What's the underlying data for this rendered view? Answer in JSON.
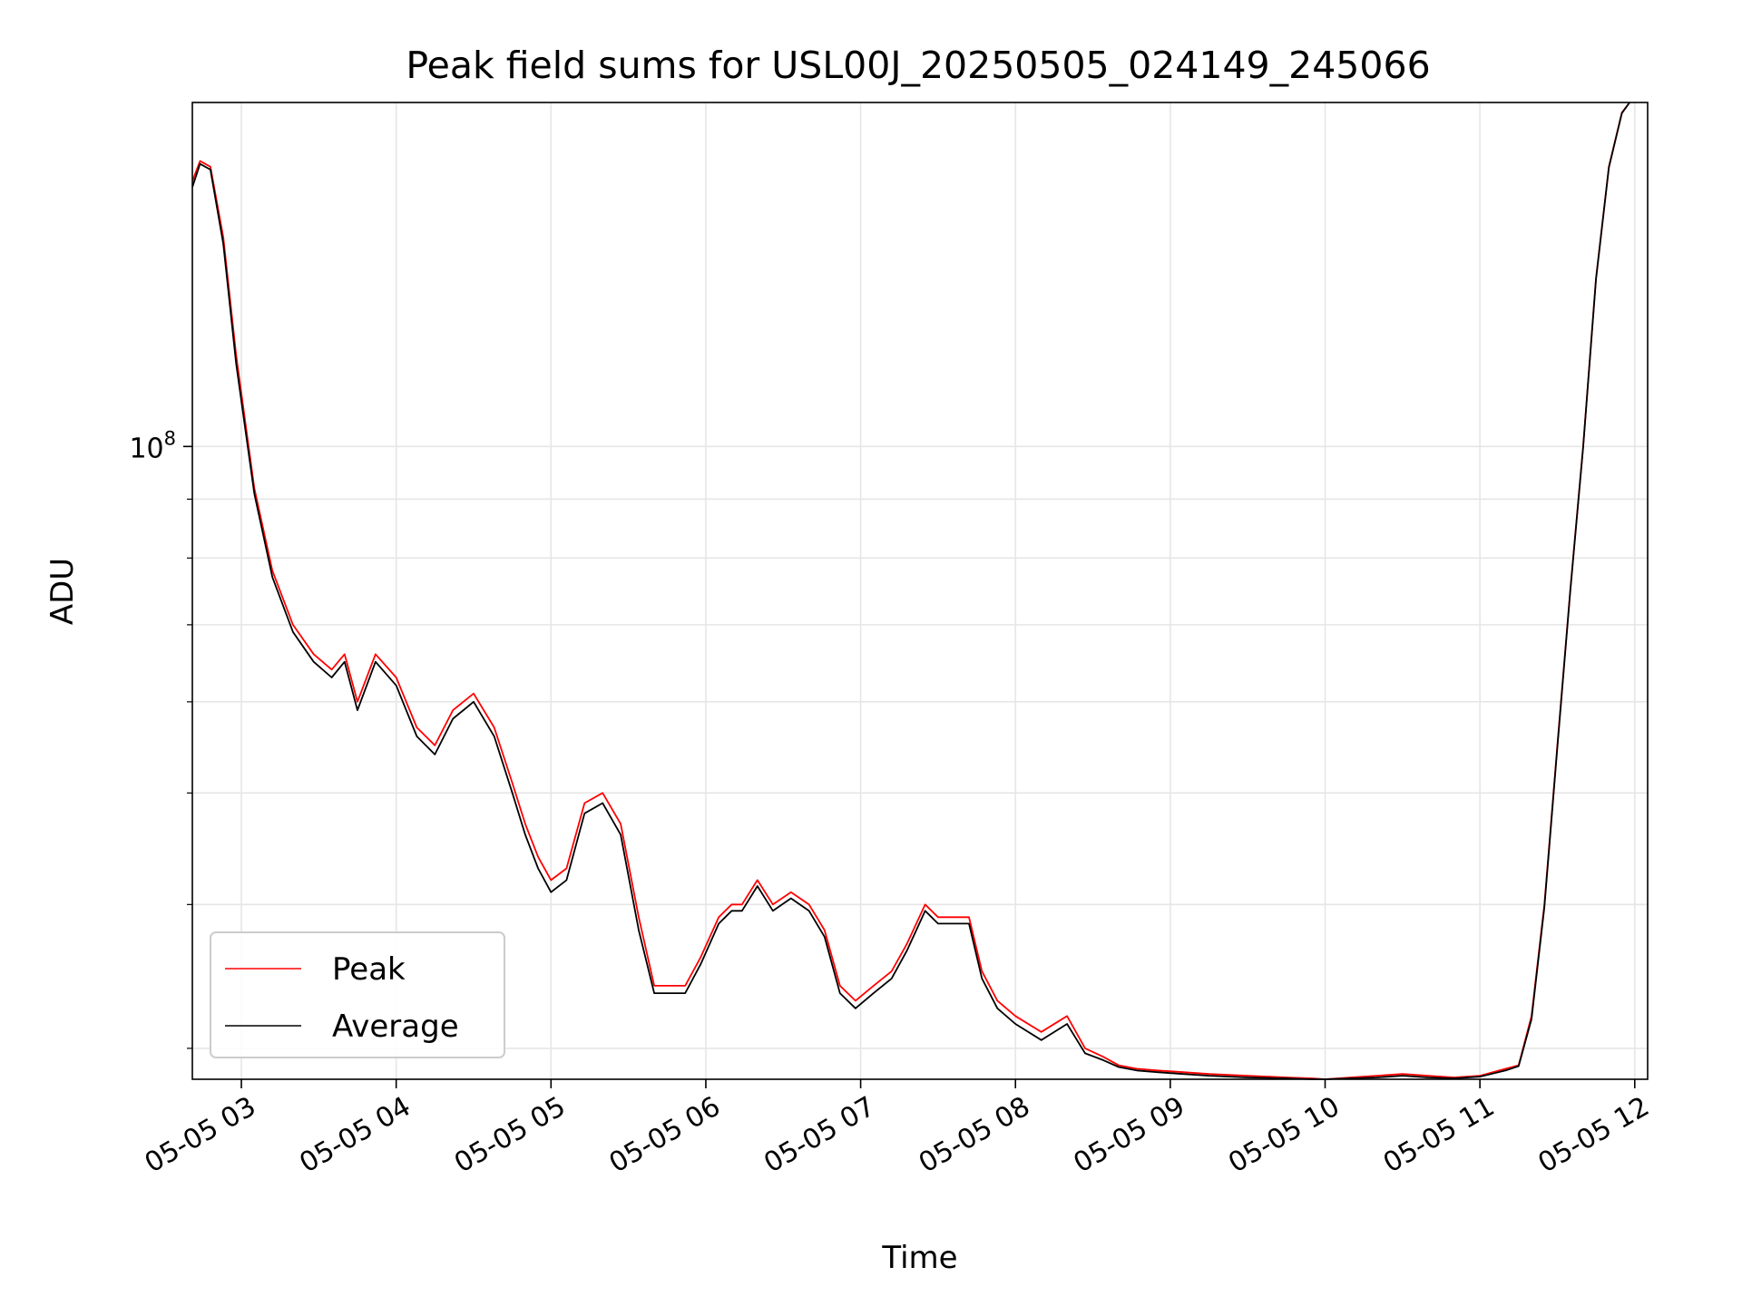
{
  "chart_data": {
    "type": "line",
    "title": "Peak field sums for USL00J_20250505_024149_245066",
    "xlabel": "Time",
    "ylabel": "ADU",
    "x_tick_labels": [
      "05-05 03",
      "05-05 04",
      "05-05 05",
      "05-05 06",
      "05-05 07",
      "05-05 08",
      "05-05 09",
      "05-05 10",
      "05-05 11",
      "05-05 12"
    ],
    "x_tick_values": [
      "2025-05-05 03:00",
      "2025-05-05 04:00",
      "2025-05-05 05:00",
      "2025-05-05 06:00",
      "2025-05-05 07:00",
      "2025-05-05 08:00",
      "2025-05-05 09:00",
      "2025-05-05 10:00",
      "2025-05-05 11:00",
      "2025-05-05 12:00"
    ],
    "xlim": [
      "2025-05-05 02:41",
      "2025-05-05 12:05"
    ],
    "y_scale": "log",
    "y_tick_labels": [
      {
        "base": "10",
        "exp": "8",
        "value": 100000000
      }
    ],
    "ylim": [
      28200000,
      199000000
    ],
    "grid": true,
    "legend_position": "lower-left",
    "series": [
      {
        "name": "Peak",
        "color": "#ff0000",
        "x": [
          "2025-05-05 02:41",
          "2025-05-05 02:44",
          "2025-05-05 02:48",
          "2025-05-05 02:53",
          "2025-05-05 02:58",
          "2025-05-05 03:05",
          "2025-05-05 03:12",
          "2025-05-05 03:20",
          "2025-05-05 03:28",
          "2025-05-05 03:35",
          "2025-05-05 03:40",
          "2025-05-05 03:45",
          "2025-05-05 03:52",
          "2025-05-05 04:00",
          "2025-05-05 04:08",
          "2025-05-05 04:15",
          "2025-05-05 04:22",
          "2025-05-05 04:30",
          "2025-05-05 04:38",
          "2025-05-05 04:45",
          "2025-05-05 04:50",
          "2025-05-05 04:55",
          "2025-05-05 05:00",
          "2025-05-05 05:06",
          "2025-05-05 05:13",
          "2025-05-05 05:20",
          "2025-05-05 05:27",
          "2025-05-05 05:34",
          "2025-05-05 05:40",
          "2025-05-05 05:46",
          "2025-05-05 05:52",
          "2025-05-05 05:58",
          "2025-05-05 06:05",
          "2025-05-05 06:10",
          "2025-05-05 06:14",
          "2025-05-05 06:20",
          "2025-05-05 06:26",
          "2025-05-05 06:33",
          "2025-05-05 06:40",
          "2025-05-05 06:46",
          "2025-05-05 06:52",
          "2025-05-05 06:58",
          "2025-05-05 07:05",
          "2025-05-05 07:12",
          "2025-05-05 07:18",
          "2025-05-05 07:25",
          "2025-05-05 07:30",
          "2025-05-05 07:36",
          "2025-05-05 07:42",
          "2025-05-05 07:47",
          "2025-05-05 07:53",
          "2025-05-05 08:00",
          "2025-05-05 08:10",
          "2025-05-05 08:20",
          "2025-05-05 08:27",
          "2025-05-05 08:34",
          "2025-05-05 08:40",
          "2025-05-05 08:47",
          "2025-05-05 08:55",
          "2025-05-05 09:05",
          "2025-05-05 09:15",
          "2025-05-05 09:30",
          "2025-05-05 09:45",
          "2025-05-05 09:55",
          "2025-05-05 10:00",
          "2025-05-05 10:10",
          "2025-05-05 10:20",
          "2025-05-05 10:30",
          "2025-05-05 10:40",
          "2025-05-05 10:50",
          "2025-05-05 11:00",
          "2025-05-05 11:10",
          "2025-05-05 11:15",
          "2025-05-05 11:20",
          "2025-05-05 11:25",
          "2025-05-05 11:30",
          "2025-05-05 11:35",
          "2025-05-05 11:40",
          "2025-05-05 11:45",
          "2025-05-05 11:50",
          "2025-05-05 11:55",
          "2025-05-05 11:58"
        ],
        "y": [
          170000000,
          177000000,
          175000000,
          152000000,
          120000000,
          92000000,
          78000000,
          70000000,
          66000000,
          64000000,
          66000000,
          60000000,
          66000000,
          63000000,
          57000000,
          55000000,
          59000000,
          61000000,
          57000000,
          51000000,
          47000000,
          44000000,
          42000000,
          43000000,
          49000000,
          50000000,
          47000000,
          39000000,
          34000000,
          34000000,
          34000000,
          36000000,
          39000000,
          40000000,
          40000000,
          42000000,
          40000000,
          41000000,
          40000000,
          38000000,
          34000000,
          33000000,
          34000000,
          35000000,
          37000000,
          40000000,
          39000000,
          39000000,
          39000000,
          35000000,
          33000000,
          32000000,
          31000000,
          32000000,
          30000000,
          29500000,
          29000000,
          28800000,
          28700000,
          28600000,
          28500000,
          28400000,
          28300000,
          28250000,
          28200000,
          28300000,
          28400000,
          28500000,
          28400000,
          28300000,
          28400000,
          28800000,
          29000000,
          32000000,
          40000000,
          55000000,
          75000000,
          100000000,
          140000000,
          175000000,
          195000000,
          199000000
        ]
      },
      {
        "name": "Average",
        "color": "#000000",
        "x": [
          "2025-05-05 02:41",
          "2025-05-05 02:44",
          "2025-05-05 02:48",
          "2025-05-05 02:53",
          "2025-05-05 02:58",
          "2025-05-05 03:05",
          "2025-05-05 03:12",
          "2025-05-05 03:20",
          "2025-05-05 03:28",
          "2025-05-05 03:35",
          "2025-05-05 03:40",
          "2025-05-05 03:45",
          "2025-05-05 03:52",
          "2025-05-05 04:00",
          "2025-05-05 04:08",
          "2025-05-05 04:15",
          "2025-05-05 04:22",
          "2025-05-05 04:30",
          "2025-05-05 04:38",
          "2025-05-05 04:45",
          "2025-05-05 04:50",
          "2025-05-05 04:55",
          "2025-05-05 05:00",
          "2025-05-05 05:06",
          "2025-05-05 05:13",
          "2025-05-05 05:20",
          "2025-05-05 05:27",
          "2025-05-05 05:34",
          "2025-05-05 05:40",
          "2025-05-05 05:46",
          "2025-05-05 05:52",
          "2025-05-05 05:58",
          "2025-05-05 06:05",
          "2025-05-05 06:10",
          "2025-05-05 06:14",
          "2025-05-05 06:20",
          "2025-05-05 06:26",
          "2025-05-05 06:33",
          "2025-05-05 06:40",
          "2025-05-05 06:46",
          "2025-05-05 06:52",
          "2025-05-05 06:58",
          "2025-05-05 07:05",
          "2025-05-05 07:12",
          "2025-05-05 07:18",
          "2025-05-05 07:25",
          "2025-05-05 07:30",
          "2025-05-05 07:36",
          "2025-05-05 07:42",
          "2025-05-05 07:47",
          "2025-05-05 07:53",
          "2025-05-05 08:00",
          "2025-05-05 08:10",
          "2025-05-05 08:20",
          "2025-05-05 08:27",
          "2025-05-05 08:34",
          "2025-05-05 08:40",
          "2025-05-05 08:47",
          "2025-05-05 08:55",
          "2025-05-05 09:05",
          "2025-05-05 09:15",
          "2025-05-05 09:30",
          "2025-05-05 09:45",
          "2025-05-05 09:55",
          "2025-05-05 10:00",
          "2025-05-05 10:10",
          "2025-05-05 10:20",
          "2025-05-05 10:30",
          "2025-05-05 10:40",
          "2025-05-05 10:50",
          "2025-05-05 11:00",
          "2025-05-05 11:10",
          "2025-05-05 11:15",
          "2025-05-05 11:20",
          "2025-05-05 11:25",
          "2025-05-05 11:30",
          "2025-05-05 11:35",
          "2025-05-05 11:40",
          "2025-05-05 11:45",
          "2025-05-05 11:50",
          "2025-05-05 11:55",
          "2025-05-05 11:58"
        ],
        "y": [
          168000000,
          176000000,
          174000000,
          150000000,
          118000000,
          91000000,
          77000000,
          69000000,
          65000000,
          63000000,
          65000000,
          59000000,
          65000000,
          62000000,
          56000000,
          54000000,
          58000000,
          60000000,
          56000000,
          50000000,
          46000000,
          43000000,
          41000000,
          42000000,
          48000000,
          49000000,
          46000000,
          38000000,
          33500000,
          33500000,
          33500000,
          35500000,
          38500000,
          39500000,
          39500000,
          41500000,
          39500000,
          40500000,
          39500000,
          37500000,
          33500000,
          32500000,
          33500000,
          34500000,
          36500000,
          39500000,
          38500000,
          38500000,
          38500000,
          34500000,
          32500000,
          31500000,
          30500000,
          31500000,
          29700000,
          29300000,
          28900000,
          28700000,
          28600000,
          28500000,
          28400000,
          28300000,
          28250000,
          28200000,
          28200000,
          28250000,
          28300000,
          28400000,
          28300000,
          28250000,
          28350000,
          28700000,
          28950000,
          31800000,
          39800000,
          54800000,
          74800000,
          99800000,
          139800000,
          174800000,
          194800000,
          199000000
        ]
      }
    ]
  }
}
